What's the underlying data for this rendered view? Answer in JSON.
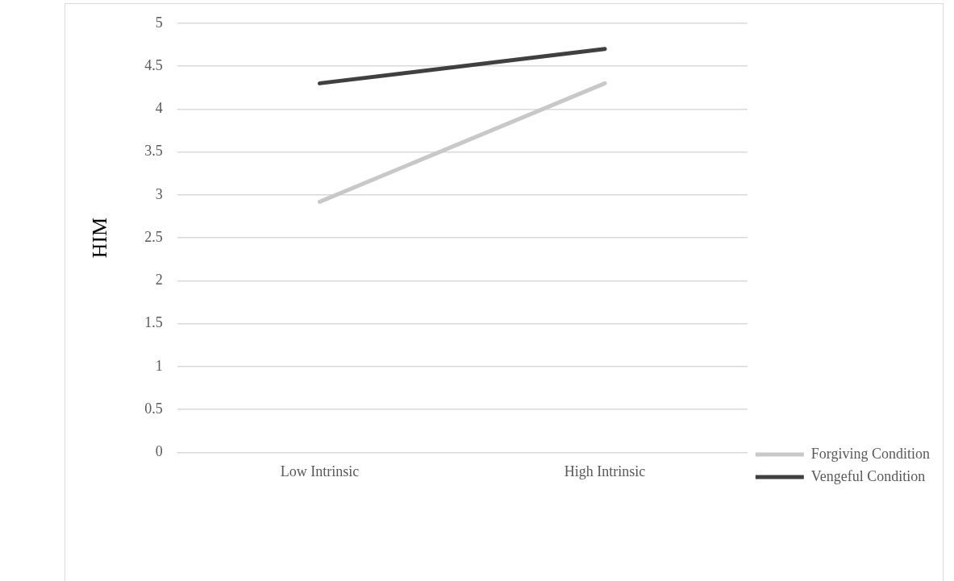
{
  "chart_data": {
    "type": "line",
    "ylabel": "HIM",
    "categories": [
      "Low Intrinsic",
      "High Intrinsic"
    ],
    "series": [
      {
        "name": "Forgiving Condition",
        "color": "#c8c8c8",
        "values": [
          2.92,
          4.3
        ]
      },
      {
        "name": "Vengeful Condition",
        "color": "#404040",
        "values": [
          4.3,
          4.7
        ]
      }
    ],
    "ylim": [
      0,
      5
    ],
    "yticks": [
      0,
      0.5,
      1,
      1.5,
      2,
      2.5,
      3,
      3.5,
      4,
      4.5,
      5
    ],
    "grid": "y",
    "legend": "right",
    "marker": "none",
    "line_style": "solid"
  }
}
